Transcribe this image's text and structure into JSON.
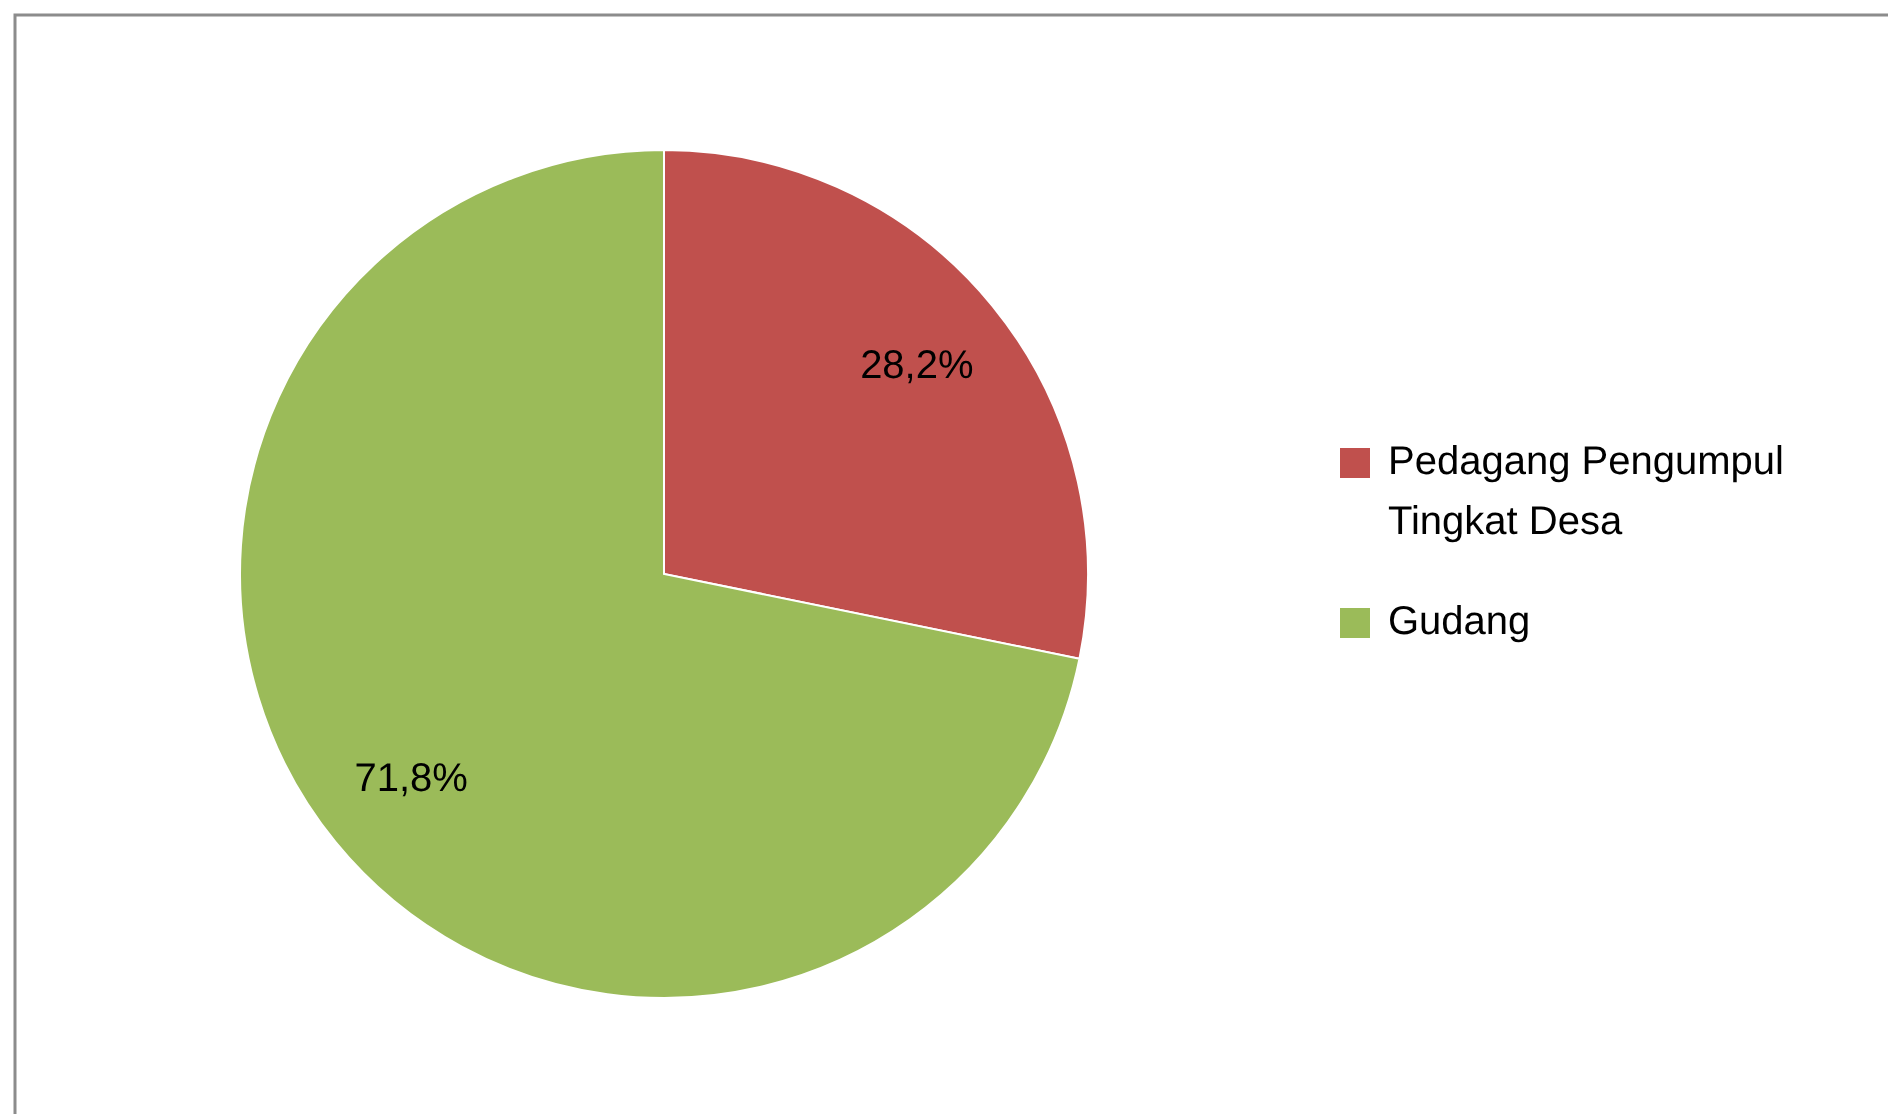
{
  "chart_data": {
    "type": "pie",
    "categories": [
      "Pedagang Pengumpul Tingkat Desa",
      "Gudang"
    ],
    "values": [
      28.2,
      71.8
    ],
    "colors": [
      "#c0504d",
      "#9bbb59"
    ],
    "value_labels": [
      "28,2%",
      "71,8%"
    ],
    "legend": "right"
  }
}
